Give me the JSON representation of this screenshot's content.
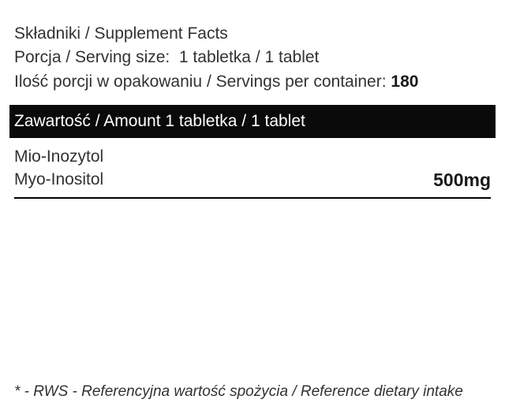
{
  "header": {
    "line1": "Składniki / Supplement Facts",
    "line2_label": "Porcja / Serving size:",
    "line2_value": "1 tabletka / 1 tablet",
    "line3_label": "Ilość porcji w opakowaniu / Servings per container:",
    "line3_value": "180"
  },
  "bar": {
    "text": "Zawartość / Amount 1 tabletka / 1 tablet"
  },
  "ingredient": {
    "name_pl": "Mio-Inozytol",
    "name_en": "Myo-Inositol",
    "amount": "500mg"
  },
  "footnote": {
    "text": "* - RWS - Referencyjna wartość spożycia / Reference dietary intake"
  },
  "styling": {
    "background_color": "#ffffff",
    "text_color": "#323232",
    "bar_background": "#0a0a0a",
    "bar_text_color": "#ffffff",
    "border_color": "#000000",
    "bold_color": "#1a1a1a",
    "font_size_body": 21,
    "font_size_amount": 23,
    "font_size_footnote": 19,
    "border_width": 2.5
  }
}
